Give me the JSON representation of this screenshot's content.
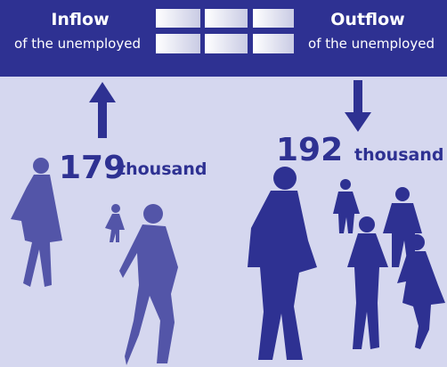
{
  "inflow": {
    "title": "Inflow",
    "subtitle": "of the unemployed",
    "value": 179,
    "unit": "thousand"
  },
  "outflow": {
    "title": "Outflow",
    "subtitle": "of the unemployed",
    "value": 192,
    "unit": "thousand"
  }
}
